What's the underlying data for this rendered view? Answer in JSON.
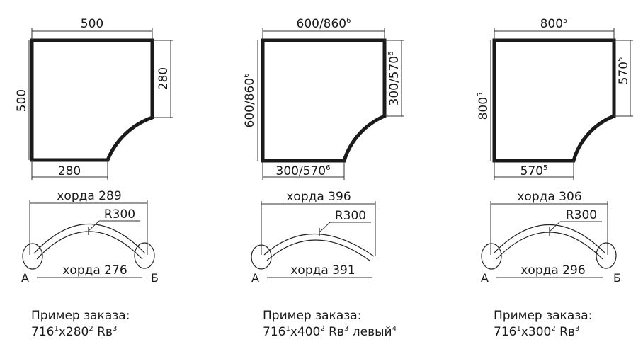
{
  "panels": [
    {
      "top_dim": {
        "text": "500",
        "sup": ""
      },
      "right_dim": {
        "text": "280",
        "sup": ""
      },
      "left_dim": {
        "text": "500",
        "sup": ""
      },
      "bottom_dim": {
        "text": "280",
        "sup": ""
      },
      "chord_top": "хорда 289",
      "radius": "R300",
      "chord_bottom": "хорда 276",
      "end_a": "А",
      "end_b": "Б",
      "order_title": "Пример заказа:",
      "order_line": [
        {
          "t": "716",
          "s": "1"
        },
        {
          "t": "x280",
          "s": "2"
        },
        {
          "t": " Rв",
          "s": "3"
        }
      ]
    },
    {
      "top_dim": {
        "text": "600/860",
        "sup": "6"
      },
      "right_dim": {
        "text": "300/570",
        "sup": "6"
      },
      "left_dim": {
        "text": "600/860",
        "sup": "6"
      },
      "bottom_dim": {
        "text": "300/570",
        "sup": "6"
      },
      "chord_top": "хорда 396",
      "radius": "R300",
      "chord_bottom": "хорда 391",
      "end_a": "А",
      "end_b": "",
      "order_title": "Пример заказа:",
      "order_line": [
        {
          "t": "716",
          "s": "1"
        },
        {
          "t": "x400",
          "s": "2"
        },
        {
          "t": " Rв",
          "s": "3"
        },
        {
          "t": " левый",
          "s": "4"
        }
      ]
    },
    {
      "top_dim": {
        "text": "800",
        "sup": "5"
      },
      "right_dim": {
        "text": "570",
        "sup": "5"
      },
      "left_dim": {
        "text": "800",
        "sup": "5"
      },
      "bottom_dim": {
        "text": "570",
        "sup": "5"
      },
      "chord_top": "хорда 306",
      "radius": "R300",
      "chord_bottom": "хорда 296",
      "end_a": "А",
      "end_b": "Б",
      "order_title": "Пример заказа:",
      "order_line": [
        {
          "t": "716",
          "s": "1"
        },
        {
          "t": "x300",
          "s": "2"
        },
        {
          "t": " Rв",
          "s": "3"
        }
      ]
    }
  ]
}
